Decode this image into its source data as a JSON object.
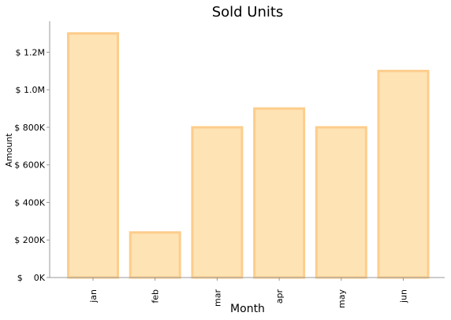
{
  "chart_data": {
    "type": "bar",
    "title": "Sold Units",
    "xlabel": "Month",
    "ylabel": "Amount",
    "categories": [
      "jan",
      "feb",
      "mar",
      "apr",
      "may",
      "jun"
    ],
    "values": [
      1300000,
      240000,
      800000,
      900000,
      800000,
      1100000
    ],
    "ylim": [
      0,
      1365000
    ],
    "yticks": [
      {
        "value": 0,
        "label": "$    0K"
      },
      {
        "value": 200000,
        "label": "$ 200K"
      },
      {
        "value": 400000,
        "label": "$ 400K"
      },
      {
        "value": 600000,
        "label": "$ 600K"
      },
      {
        "value": 800000,
        "label": "$ 800K"
      },
      {
        "value": 1000000,
        "label": "$ 1.0M"
      },
      {
        "value": 1200000,
        "label": "$ 1.2M"
      }
    ],
    "grid": false,
    "bar_fill": "#fee3b4",
    "bar_edge": "#fdcd8c",
    "axis_color": "#999999"
  }
}
